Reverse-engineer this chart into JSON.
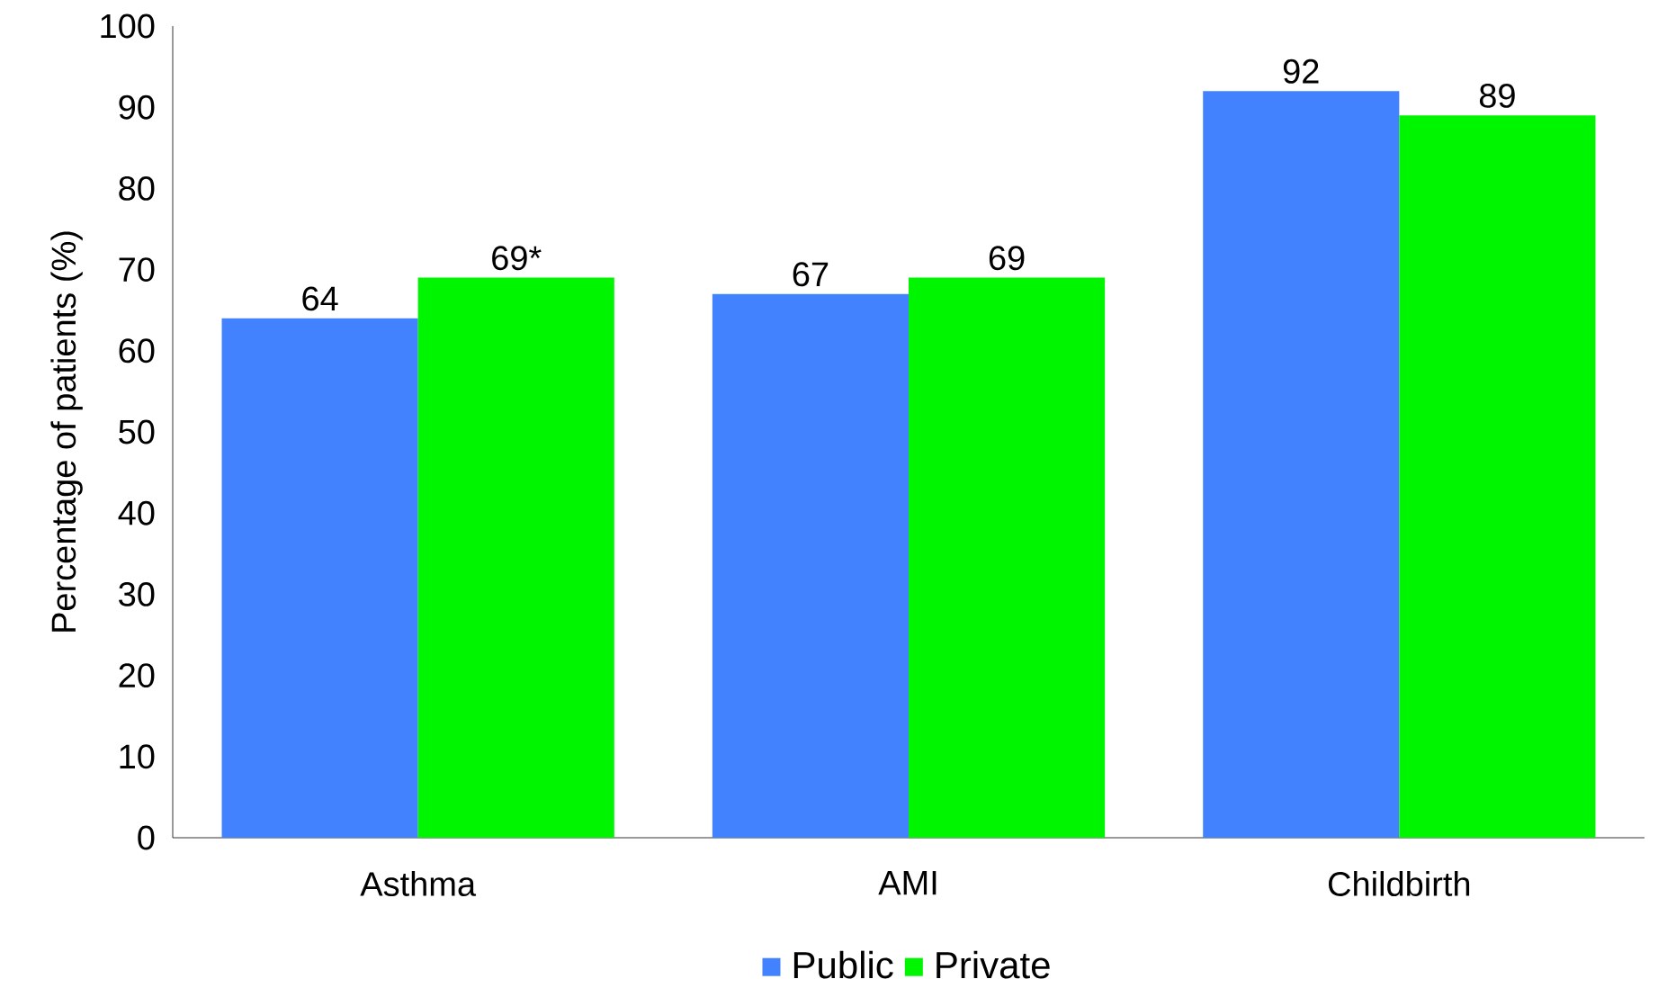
{
  "chart_data": {
    "type": "bar",
    "ylabel": "Percentage of patients (%)",
    "categories": [
      "Asthma",
      "AMI",
      "Childbirth"
    ],
    "series": [
      {
        "name": "Public",
        "color": "#4382ff",
        "values": [
          64,
          67,
          92
        ],
        "value_labels": [
          "64",
          "67",
          "92"
        ]
      },
      {
        "name": "Private",
        "color": "#00f500",
        "values": [
          69,
          69,
          89
        ],
        "value_labels": [
          "69*",
          "69",
          "89"
        ]
      }
    ],
    "ylim": [
      0,
      100
    ],
    "yticks": [
      0,
      10,
      20,
      30,
      40,
      50,
      60,
      70,
      80,
      90,
      100
    ],
    "grid": false,
    "legend": "bottom"
  }
}
